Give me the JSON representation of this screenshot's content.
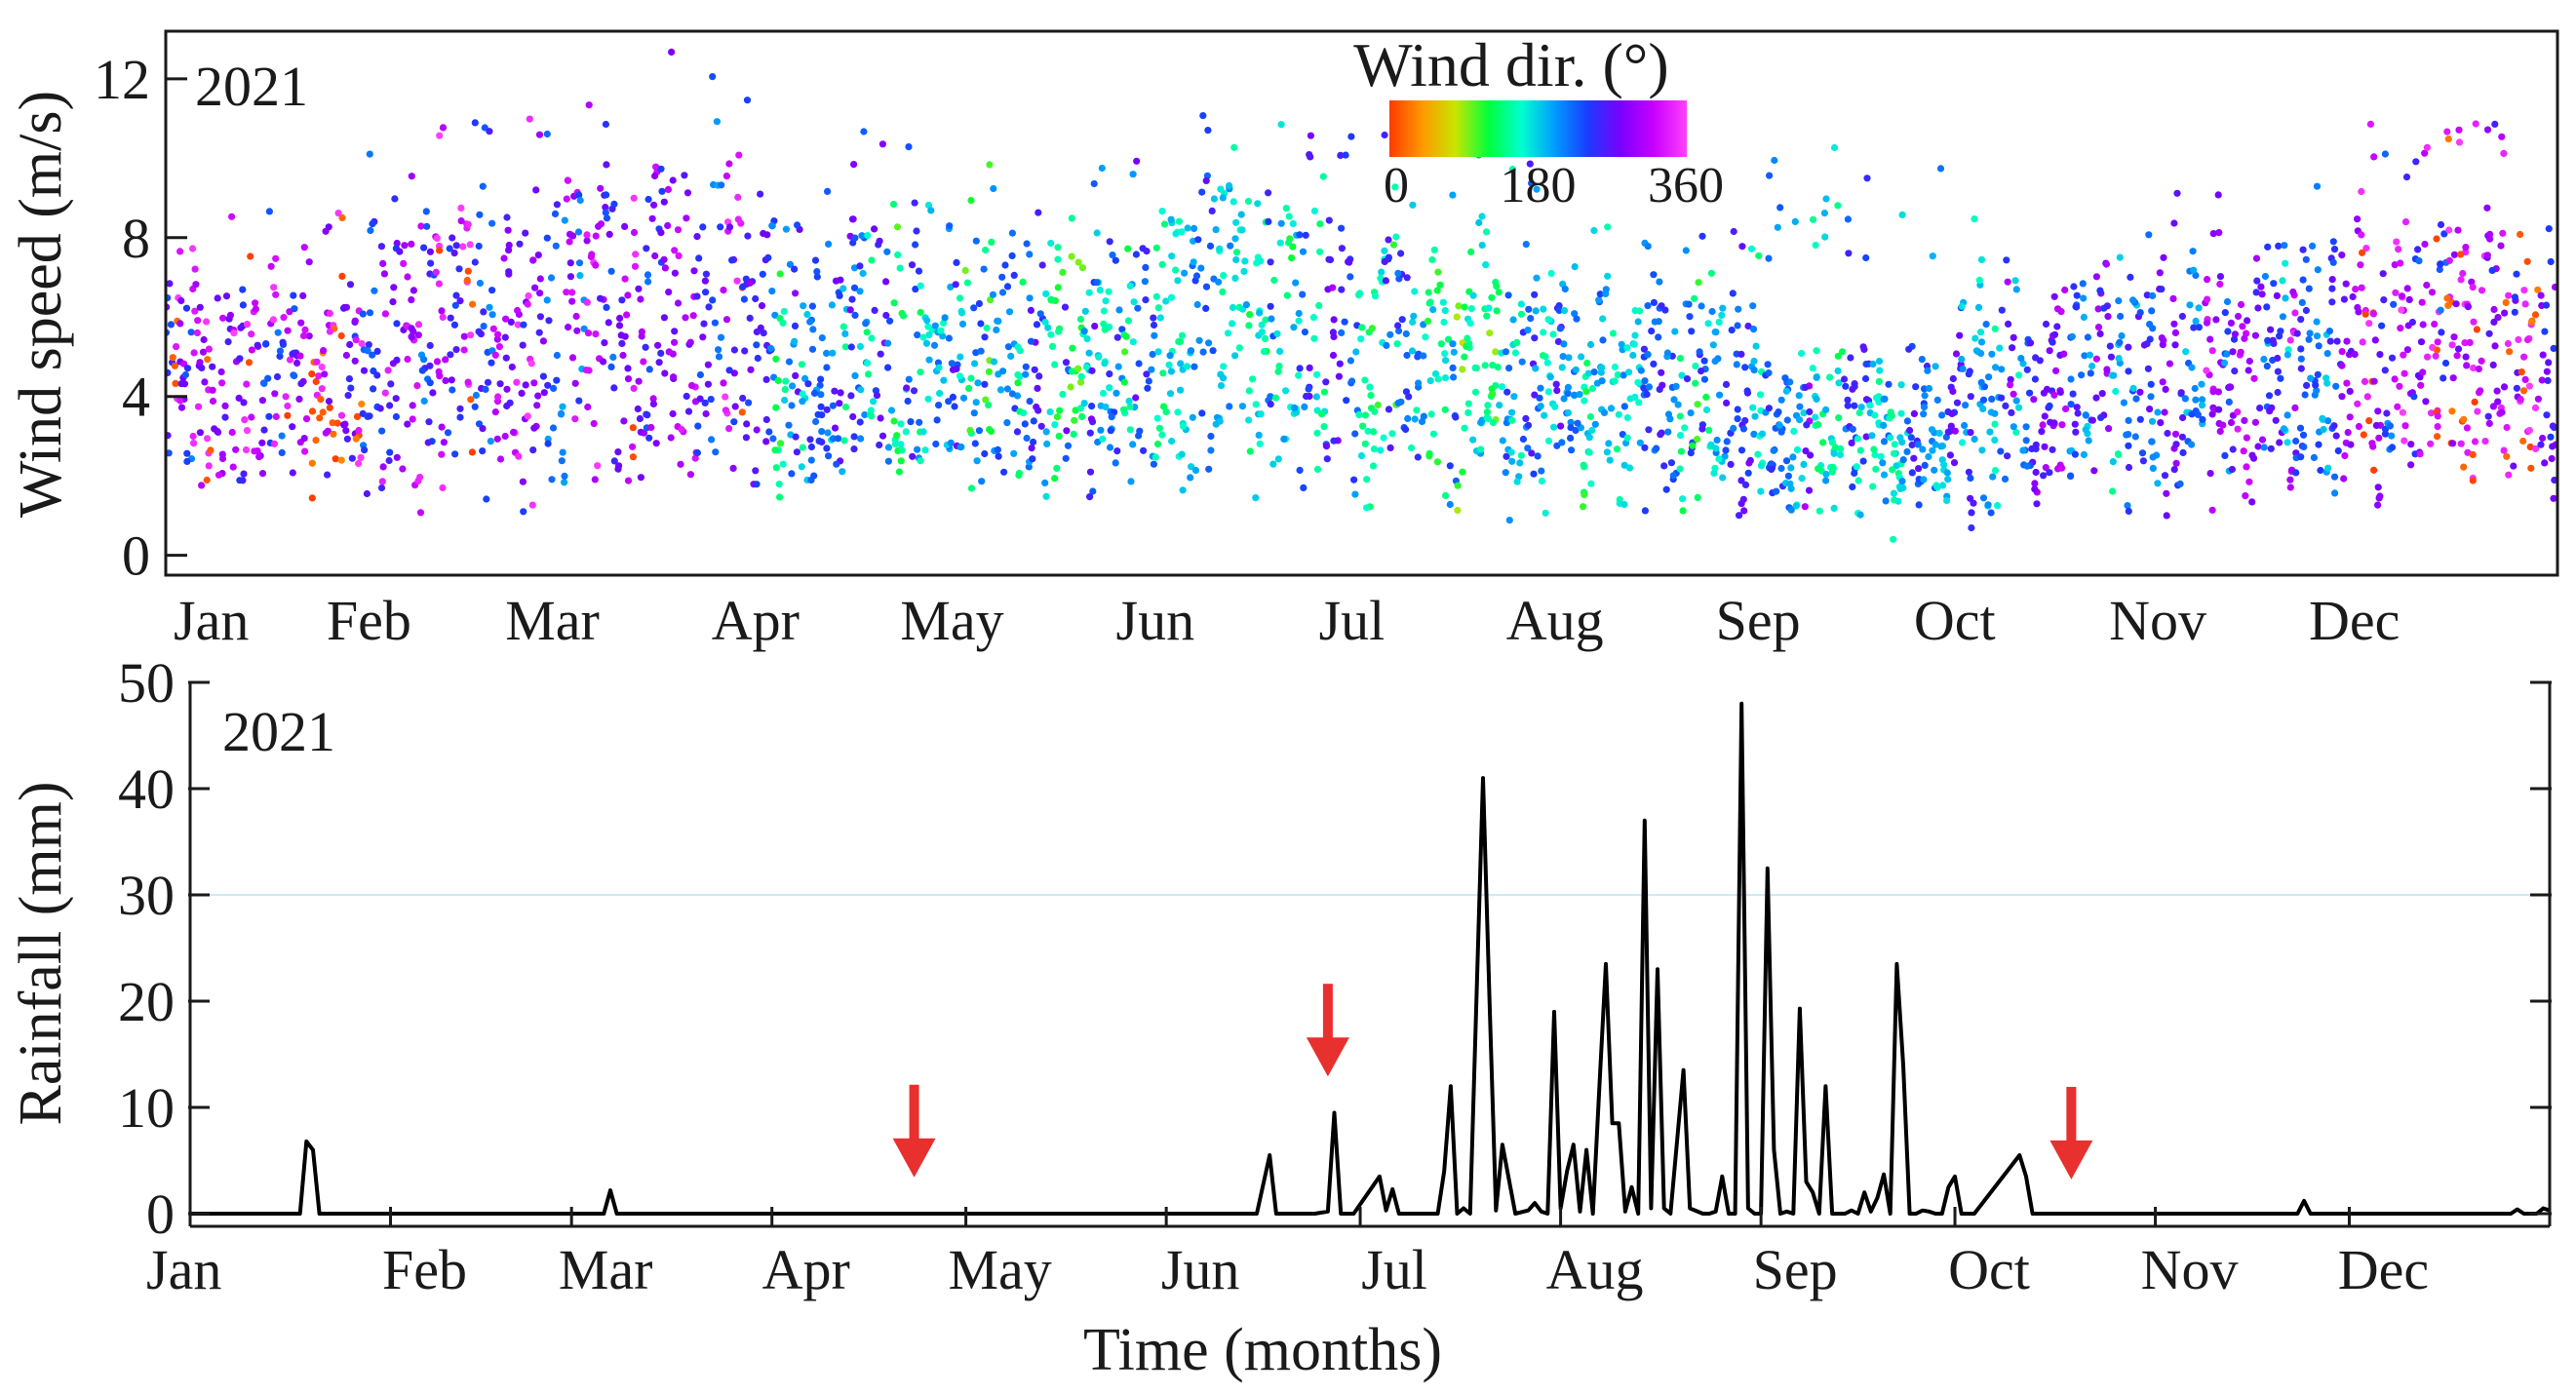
{
  "colors": {
    "arrow": "#e8302e",
    "rain_line": "#000000",
    "guide_line": "#cde9f4",
    "axis": "#1a1a1a",
    "colorbar_stops": [
      "#ff3b00",
      "#ff9900",
      "#c8e600",
      "#00ff3c",
      "#00ffd0",
      "#009cff",
      "#1a3cff",
      "#7a00ff",
      "#c800ff",
      "#ff40ff"
    ]
  },
  "chart_data": [
    {
      "type": "scatter",
      "panel": "top",
      "year": "2021",
      "title": "",
      "xlabel": "",
      "ylabel": "Wind speed (m/s)",
      "xlim": [
        0,
        365
      ],
      "ylim": [
        -0.5,
        13.2
      ],
      "yticks": [
        0,
        4,
        8,
        12
      ],
      "ytick_labels": [
        "0",
        "4",
        "8",
        "12"
      ],
      "month_labels": [
        "Jan",
        "Feb",
        "Mar",
        "Apr",
        "May",
        "Jun",
        "Jul",
        "Aug",
        "Sep",
        "Oct",
        "Nov",
        "Dec"
      ],
      "month_label_days": [
        1,
        32,
        60,
        91,
        121,
        152,
        182,
        213,
        244,
        274,
        305,
        335
      ],
      "colorbar": {
        "title": "Wind dir. (°)",
        "range": [
          0,
          360
        ],
        "ticks": [
          0,
          180,
          360
        ],
        "tick_labels": [
          "0",
          "180",
          "360"
        ],
        "position": "top-center"
      },
      "point_color_encodes": "wind direction (degrees)",
      "daily_profile": {
        "description": "approximate daily wind speed envelope read from the scatter (m/s) and dominant wind direction (deg) per month",
        "monthly_min": [
          0.6,
          0.5,
          0.6,
          0.5,
          0.4,
          0.5,
          0.6,
          0.5,
          0.4,
          0.5,
          0.4,
          0.5
        ],
        "monthly_max": [
          9.7,
          11.0,
          12.8,
          10.8,
          10.0,
          11.1,
          11.7,
          8.4,
          10.5,
          8.6,
          9.6,
          10.9
        ],
        "monthly_mean": [
          4.0,
          4.5,
          5.5,
          4.8,
          4.6,
          5.5,
          4.5,
          3.6,
          2.7,
          3.8,
          4.2,
          4.6
        ],
        "monthly_dir_deg": [
          300,
          290,
          280,
          200,
          190,
          210,
          170,
          200,
          220,
          230,
          260,
          300
        ]
      }
    },
    {
      "type": "line",
      "panel": "bottom",
      "year": "2021",
      "title": "",
      "xlabel": "Time (months)",
      "ylabel": "Rainfall (mm)",
      "xlim": [
        0,
        365
      ],
      "ylim": [
        0,
        50
      ],
      "yticks": [
        0,
        10,
        20,
        30,
        40,
        50
      ],
      "ytick_labels": [
        "0",
        "10",
        "20",
        "30",
        "40",
        "50"
      ],
      "month_labels": [
        "Jan",
        "Feb",
        "Mar",
        "Apr",
        "May",
        "Jun",
        "Jul",
        "Aug",
        "Sep",
        "Oct",
        "Nov",
        "Dec"
      ],
      "month_label_days": [
        1,
        32,
        60,
        91,
        121,
        152,
        182,
        213,
        244,
        274,
        305,
        335
      ],
      "series": [
        {
          "name": "Daily rainfall",
          "x": [
            0,
            17,
            18,
            19,
            20,
            21,
            64,
            65,
            66,
            165,
            167,
            168,
            174,
            176,
            177,
            178,
            180,
            184,
            185,
            186,
            187,
            188,
            193,
            194,
            195,
            196,
            197,
            198,
            200,
            201,
            202,
            203,
            205,
            207,
            208,
            209,
            210,
            211,
            212,
            213,
            214,
            215,
            216,
            217,
            218,
            219,
            220,
            221,
            222,
            223,
            224,
            225,
            226,
            227,
            228,
            229,
            231,
            232,
            234,
            235,
            236,
            237,
            238,
            239,
            240,
            241,
            242,
            243,
            244,
            245,
            246,
            247,
            248,
            249,
            250,
            251,
            252,
            253,
            254,
            255,
            256,
            257,
            258,
            259,
            260,
            261,
            262,
            263,
            264,
            265,
            266,
            267,
            268,
            269,
            270,
            271,
            272,
            273,
            274,
            275,
            276,
            283,
            284,
            285,
            286,
            326,
            327,
            328,
            359,
            360,
            361,
            363,
            364,
            365
          ],
          "values": [
            0,
            0,
            6.8,
            6.0,
            0,
            0,
            0,
            2.2,
            0,
            0,
            5.5,
            0,
            0,
            0.2,
            9.5,
            0,
            0,
            3.5,
            0.3,
            2.3,
            0,
            0,
            0,
            4.0,
            12.0,
            0,
            0.5,
            0,
            41.0,
            20.0,
            0.3,
            6.5,
            0,
            0.3,
            1.0,
            0.2,
            0,
            19.0,
            0.5,
            4.0,
            6.5,
            0.2,
            6.0,
            0,
            12.0,
            23.5,
            8.5,
            8.5,
            0.2,
            2.5,
            0,
            37.0,
            0.5,
            23.0,
            0.5,
            0,
            13.5,
            0.5,
            0,
            0,
            0.2,
            3.5,
            0,
            0,
            48.0,
            0.5,
            0,
            0,
            32.5,
            6.0,
            0,
            0.2,
            0,
            19.3,
            3.0,
            2.0,
            0,
            12.0,
            0,
            0,
            0,
            0.3,
            0,
            2.0,
            0.2,
            1.5,
            3.7,
            0,
            23.5,
            14.0,
            0,
            0,
            0.3,
            0.2,
            0,
            0,
            2.5,
            3.5,
            0,
            0,
            0,
            5.5,
            3.5,
            0,
            0,
            0,
            1.2,
            0,
            0,
            0.4,
            0,
            0,
            0.5,
            0.3
          ]
        }
      ],
      "annotations": [
        {
          "type": "down-arrow",
          "day": 112,
          "value_tip": 2.5,
          "color": "arrow"
        },
        {
          "type": "down-arrow",
          "day": 176,
          "value_tip": 12.0,
          "color": "arrow"
        },
        {
          "type": "down-arrow",
          "day": 291,
          "value_tip": 2.3,
          "color": "arrow"
        }
      ],
      "guide_line_value": 30
    }
  ]
}
